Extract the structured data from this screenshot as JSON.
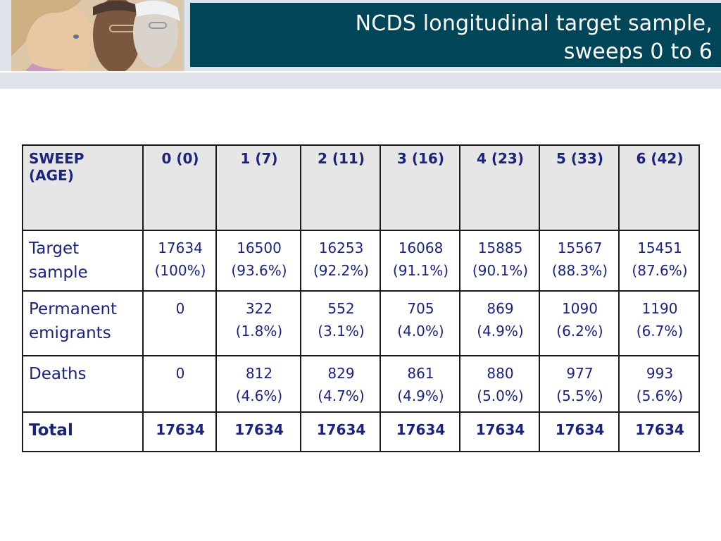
{
  "header": {
    "title": "NCDS longitudinal target sample,\nsweeps 0 to 6"
  },
  "table": {
    "row_header": [
      "SWEEP",
      "(AGE)"
    ],
    "columns": [
      "0 (0)",
      "1 (7)",
      "2 (11)",
      "3 (16)",
      "4 (23)",
      "5 (33)",
      "6 (42)"
    ],
    "rows": [
      {
        "label": [
          "Target",
          "sample"
        ],
        "cells": [
          [
            "17634",
            "(100%)"
          ],
          [
            "16500",
            "(93.6%)"
          ],
          [
            "16253",
            "(92.2%)"
          ],
          [
            "16068",
            "(91.1%)"
          ],
          [
            "15885",
            "(90.1%)"
          ],
          [
            "15567",
            "(88.3%)"
          ],
          [
            "15451",
            "(87.6%)"
          ]
        ]
      },
      {
        "label": [
          "Permanent",
          "emigrants"
        ],
        "cells": [
          [
            "0"
          ],
          [
            "322",
            "(1.8%)"
          ],
          [
            "552",
            "(3.1%)"
          ],
          [
            "705",
            "(4.0%)"
          ],
          [
            "869",
            "(4.9%)"
          ],
          [
            "1090",
            "(6.2%)"
          ],
          [
            "1190",
            "(6.7%)"
          ]
        ]
      },
      {
        "label": [
          "Deaths"
        ],
        "cells": [
          [
            "0"
          ],
          [
            "812",
            "(4.6%)"
          ],
          [
            "829",
            "(4.7%)"
          ],
          [
            "861",
            "(4.9%)"
          ],
          [
            "880",
            "(5.0%)"
          ],
          [
            "977",
            "(5.5%)"
          ],
          [
            "993",
            "(5.6%)"
          ]
        ]
      },
      {
        "label": [
          "Total"
        ],
        "cells": [
          [
            "17634"
          ],
          [
            "17634"
          ],
          [
            "17634"
          ],
          [
            "17634"
          ],
          [
            "17634"
          ],
          [
            "17634"
          ],
          [
            "17634"
          ]
        ]
      }
    ]
  },
  "colors": {
    "title_background": "#004558",
    "header_band": "#dde3e8",
    "text": "#1a237e",
    "header_cell": "#e6e6e6"
  },
  "icons": {
    "header_photo": "header-photo"
  }
}
